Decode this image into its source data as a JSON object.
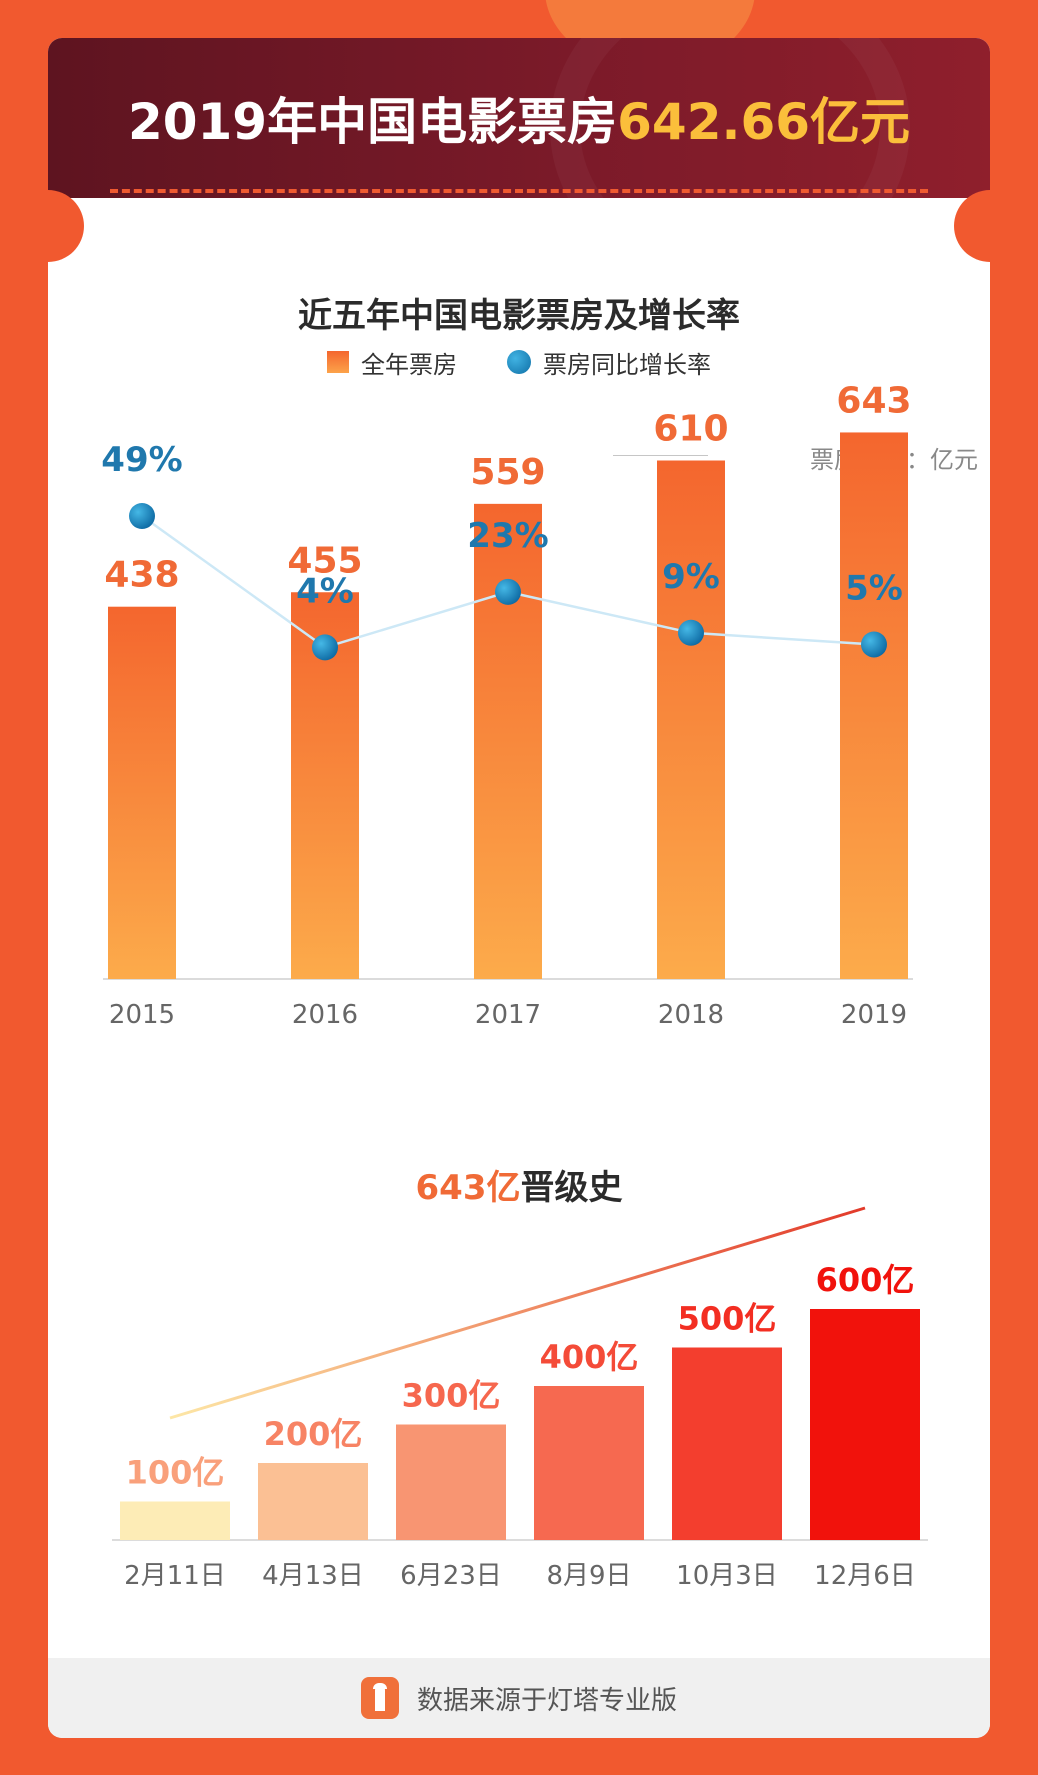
{
  "header": {
    "title_prefix": "2019年中国电影票房",
    "title_highlight": "642.66亿元"
  },
  "colors": {
    "background": "#f1592f",
    "header_dark": "#6e1726",
    "highlight_gold": "#fbbf3b",
    "bar_orange": "#f4662e",
    "line_blue": "#1283c0",
    "milestone_red": "#f10f0b"
  },
  "chart_data": [
    {
      "type": "bar",
      "title": "近五年中国电影票房及增长率",
      "categories": [
        "2015",
        "2016",
        "2017",
        "2018",
        "2019"
      ],
      "series": [
        {
          "name": "全年票房",
          "type": "bar",
          "values": [
            438,
            455,
            559,
            610,
            643
          ],
          "labels": [
            "438",
            "455",
            "559",
            "610",
            "643"
          ]
        },
        {
          "name": "票房同比增长率",
          "type": "line",
          "values": [
            49,
            4,
            23,
            9,
            5
          ],
          "labels": [
            "49%",
            "4%",
            "23%",
            "9%",
            "5%"
          ]
        }
      ],
      "unit_note": "票房单位：亿元",
      "legend_position": "top",
      "grid": false
    },
    {
      "type": "bar",
      "title_highlight": "643亿",
      "title_rest": "晋级史",
      "categories": [
        "2月11日",
        "4月13日",
        "6月23日",
        "8月9日",
        "10月3日",
        "12月6日"
      ],
      "values": [
        100,
        200,
        300,
        400,
        500,
        600
      ],
      "labels": [
        "100亿",
        "200亿",
        "300亿",
        "400亿",
        "500亿",
        "600亿"
      ],
      "grid": false
    }
  ],
  "footer": {
    "source_text": "数据来源于灯塔专业版",
    "icon": "lighthouse-icon"
  }
}
